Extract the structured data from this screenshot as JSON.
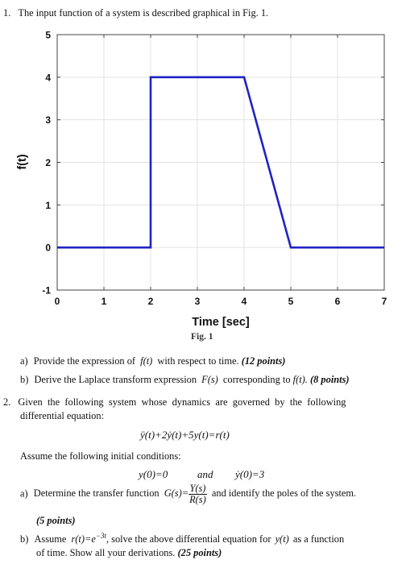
{
  "q1": {
    "number": "1.",
    "text": "The input function of a system is described graphical in Fig. 1.",
    "part_a_label": "a)",
    "part_a_text1": "Provide the expression of",
    "part_a_math": "f(t)",
    "part_a_text2": "with respect to time.",
    "part_a_points": "(12 points)",
    "part_b_label": "b)",
    "part_b_text1": "Derive the Laplace transform expression",
    "part_b_math1": "F(s)",
    "part_b_text2": "corresponding to",
    "part_b_math2": "f(t).",
    "part_b_points": "(8 points)"
  },
  "figure_caption": "Fig. 1",
  "chart_data": {
    "type": "line",
    "xlabel": "Time [sec]",
    "ylabel": "f(t)",
    "xlim": [
      0,
      7
    ],
    "ylim": [
      -1,
      5
    ],
    "xticks": [
      0,
      1,
      2,
      3,
      4,
      5,
      6,
      7
    ],
    "yticks": [
      -1,
      0,
      1,
      2,
      3,
      4,
      5
    ],
    "grid": true,
    "series": [
      {
        "x": [
          0,
          2,
          2,
          4,
          5,
          7
        ],
        "y": [
          0,
          0,
          4,
          4,
          0,
          0
        ],
        "color": "#1f23c4"
      }
    ]
  },
  "q2": {
    "number": "2.",
    "line1": "Given the following system whose dynamics are governed by the following",
    "line2": "differential equation:",
    "equation": "ÿ(t)+2ẏ(t)+5y(t)=r(t)",
    "assume": "Assume the following initial conditions:",
    "ic1": "y(0)=0",
    "ic_and": "and",
    "ic2": "ẏ(0)=3",
    "part_a_label": "a)",
    "part_a_text1": "Determine the transfer function",
    "part_a_math": "G(s)=",
    "frac_num": "Y(s)",
    "frac_den": "R(s)",
    "part_a_text2": "and identify the poles of the system.",
    "part_a_points": "(5 points)",
    "part_b_label": "b)",
    "part_b_text1": "Assume",
    "part_b_math1": "r(t)=e",
    "part_b_exp": "−3t",
    "part_b_text2": ", solve the above differential equation for",
    "part_b_math2": "y(t)",
    "part_b_text3": "as a function",
    "part_b_line2": "of time. Show all your derivations.",
    "part_b_points": "(25 points)"
  }
}
